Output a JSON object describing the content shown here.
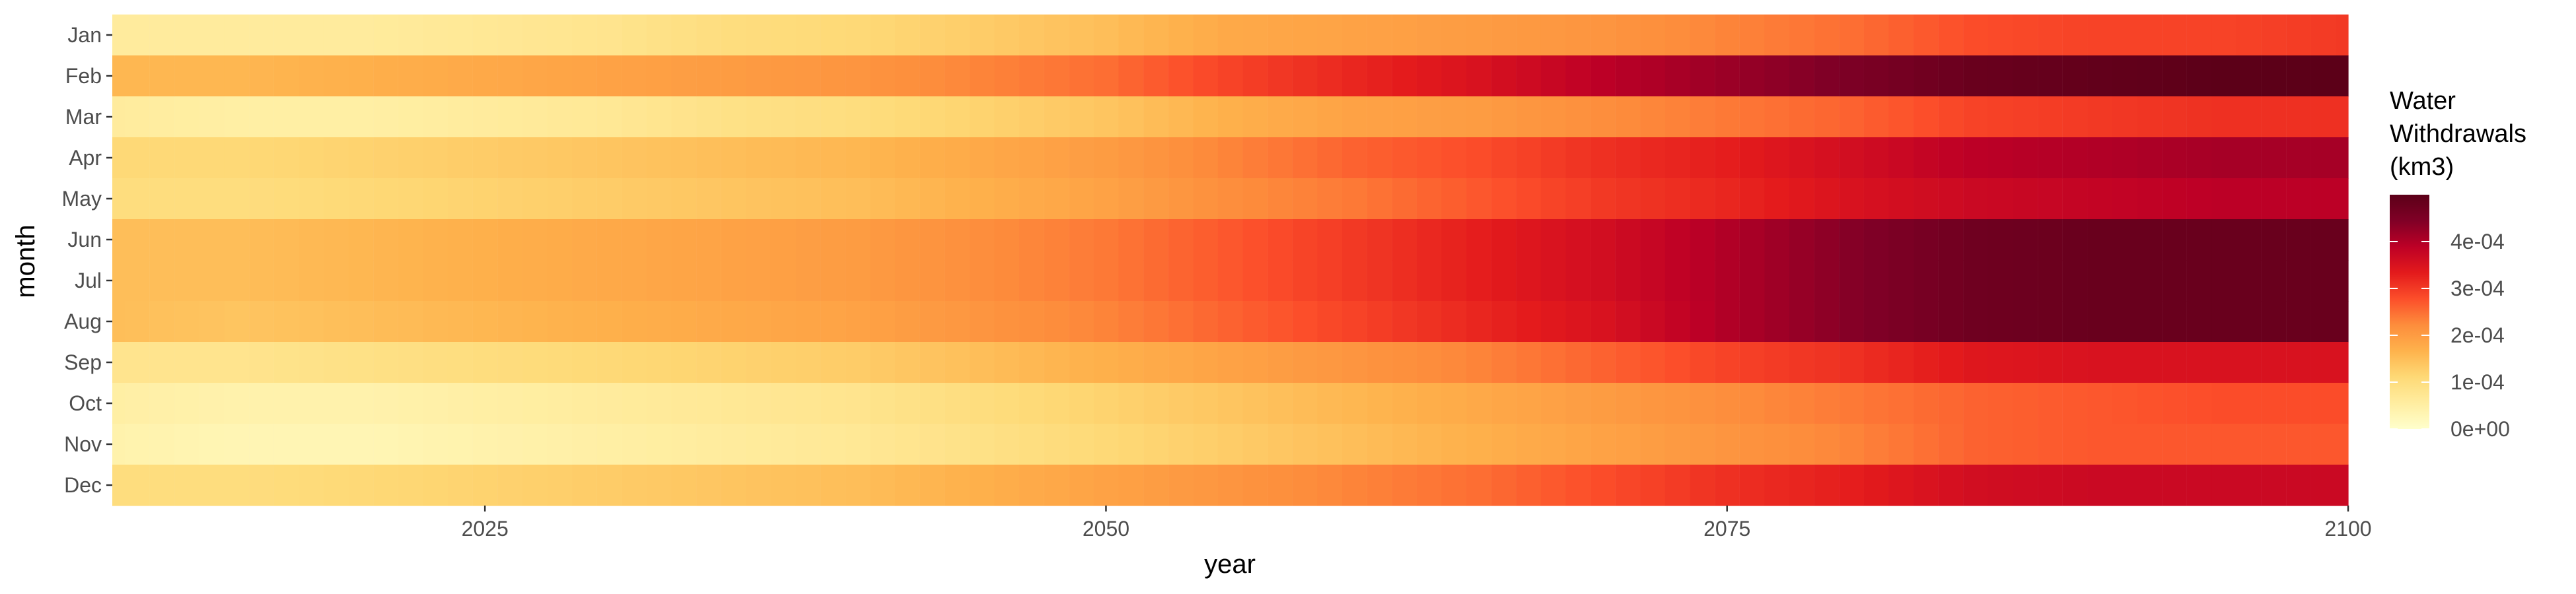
{
  "chart_data": {
    "type": "heatmap",
    "title": "",
    "xlabel": "year",
    "ylabel": "month",
    "x_range": [
      2010,
      2100
    ],
    "x_ticks": [
      "2025",
      "2050",
      "2075",
      "2100"
    ],
    "x_tick_values": [
      2025,
      2050,
      2075,
      2100
    ],
    "months": [
      "Jan",
      "Feb",
      "Mar",
      "Apr",
      "May",
      "Jun",
      "Jul",
      "Aug",
      "Sep",
      "Oct",
      "Nov",
      "Dec"
    ],
    "years": [
      2010,
      2015,
      2020,
      2025,
      2030,
      2035,
      2040,
      2045,
      2050,
      2055,
      2060,
      2065,
      2070,
      2075,
      2080,
      2085,
      2090,
      2095,
      2100
    ],
    "values": [
      [
        6e-05,
        6e-05,
        6e-05,
        7e-05,
        8e-05,
        0.0001,
        0.00011,
        0.00013,
        0.00015,
        0.00018,
        0.00019,
        0.0002,
        0.00021,
        0.00023,
        0.00025,
        0.00028,
        0.00029,
        0.00029,
        0.0003
      ],
      [
        0.00016,
        0.00016,
        0.00017,
        0.00018,
        0.00019,
        0.0002,
        0.00021,
        0.00023,
        0.00025,
        0.00029,
        0.00032,
        0.00035,
        0.00039,
        0.00042,
        0.00045,
        0.00048,
        0.00049,
        0.0005,
        0.0005
      ],
      [
        6e-05,
        5e-05,
        5e-05,
        6e-05,
        7e-05,
        9e-05,
        0.0001,
        0.00012,
        0.00014,
        0.00017,
        0.00019,
        0.0002,
        0.00022,
        0.00024,
        0.00026,
        0.00029,
        0.0003,
        0.00031,
        0.00031
      ],
      [
        0.00011,
        0.00011,
        0.00012,
        0.00013,
        0.00014,
        0.00015,
        0.00016,
        0.00018,
        0.0002,
        0.00023,
        0.00026,
        0.00028,
        0.00031,
        0.00033,
        0.00036,
        0.00039,
        0.0004,
        0.00041,
        0.00041
      ],
      [
        0.0001,
        0.0001,
        0.00011,
        0.00012,
        0.00013,
        0.00014,
        0.00015,
        0.00017,
        0.00019,
        0.00022,
        0.00024,
        0.00027,
        0.0003,
        0.00032,
        0.00035,
        0.00037,
        0.00038,
        0.00039,
        0.00039
      ],
      [
        0.00015,
        0.00015,
        0.00016,
        0.00017,
        0.00018,
        0.00019,
        0.0002,
        0.00022,
        0.00024,
        0.00027,
        0.0003,
        0.00033,
        0.00036,
        0.0004,
        0.00044,
        0.00047,
        0.00048,
        0.00048,
        0.00048
      ],
      [
        0.00015,
        0.00015,
        0.00016,
        0.00017,
        0.00018,
        0.00019,
        0.0002,
        0.00022,
        0.00024,
        0.00027,
        0.0003,
        0.00033,
        0.00036,
        0.0004,
        0.00044,
        0.00047,
        0.00048,
        0.00048,
        0.00048
      ],
      [
        0.00015,
        0.00014,
        0.00015,
        0.00016,
        0.00017,
        0.00018,
        0.00019,
        0.00021,
        0.00023,
        0.00026,
        0.00029,
        0.00032,
        0.00035,
        0.0004,
        0.00044,
        0.00047,
        0.00048,
        0.00048,
        0.00048
      ],
      [
        8e-05,
        8e-05,
        9e-05,
        0.0001,
        0.00011,
        0.00012,
        0.00013,
        0.00015,
        0.00017,
        0.00019,
        0.00021,
        0.00023,
        0.00026,
        0.00029,
        0.00031,
        0.00034,
        0.00035,
        0.00035,
        0.00035
      ],
      [
        5e-05,
        4e-05,
        4e-05,
        5e-05,
        6e-05,
        7e-05,
        8e-05,
        0.0001,
        0.00012,
        0.00014,
        0.00016,
        0.00018,
        0.0002,
        0.00022,
        0.00024,
        0.00026,
        0.00027,
        0.00028,
        0.00028
      ],
      [
        4e-05,
        3e-05,
        3e-05,
        4e-05,
        5e-05,
        6e-05,
        7e-05,
        9e-05,
        0.00011,
        0.00013,
        0.00015,
        0.00017,
        0.00019,
        0.00021,
        0.00023,
        0.00026,
        0.00027,
        0.00027,
        0.00027
      ],
      [
        0.0001,
        0.0001,
        0.00011,
        0.00012,
        0.00013,
        0.00014,
        0.00015,
        0.00017,
        0.00019,
        0.00021,
        0.00023,
        0.00025,
        0.00028,
        0.00031,
        0.00033,
        0.00036,
        0.00037,
        0.00037,
        0.00037
      ]
    ],
    "legend": {
      "title_lines": [
        "Water",
        "Withdrawals",
        "(km3)"
      ],
      "labels": [
        "0e+00",
        "1e-04",
        "2e-04",
        "3e-04",
        "4e-04"
      ],
      "values": [
        0,
        0.0001,
        0.0002,
        0.0003,
        0.0004
      ],
      "max": 0.0005,
      "placement": "right"
    },
    "colors": [
      "#ffffcc",
      "#ffeda0",
      "#fed976",
      "#feb24c",
      "#fd8d3c",
      "#fc4e2a",
      "#e31a1c",
      "#bd0026",
      "#800026",
      "#5c0018"
    ],
    "panel_background": "#ebebeb",
    "grid": false
  }
}
